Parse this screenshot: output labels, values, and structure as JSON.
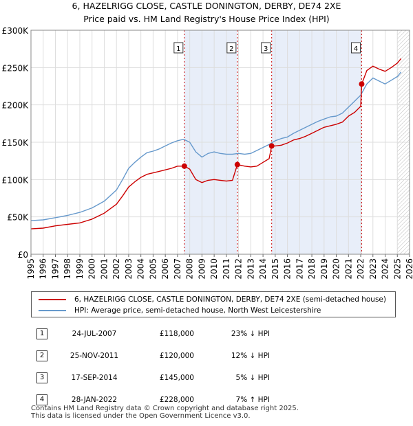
{
  "chart_data": {
    "type": "line",
    "title": "6, HAZELRIGG CLOSE, CASTLE DONINGTON, DERBY, DE74 2XE",
    "subtitle": "Price paid vs. HM Land Registry's House Price Index (HPI)",
    "xlabel": "",
    "ylabel": "",
    "xlim": [
      1995,
      2026
    ],
    "ylim": [
      0,
      300000
    ],
    "y_ticks": [
      0,
      50000,
      100000,
      150000,
      200000,
      250000,
      300000
    ],
    "y_tick_labels": [
      "£0",
      "£50K",
      "£100K",
      "£150K",
      "£200K",
      "£250K",
      "£300K"
    ],
    "x_ticks": [
      1995,
      1996,
      1997,
      1998,
      1999,
      2000,
      2001,
      2002,
      2003,
      2004,
      2005,
      2006,
      2007,
      2008,
      2009,
      2010,
      2011,
      2012,
      2013,
      2014,
      2015,
      2016,
      2017,
      2018,
      2019,
      2020,
      2021,
      2022,
      2023,
      2024,
      2025,
      2026
    ],
    "x_tick_labels": [
      "1995",
      "1996",
      "1997",
      "1998",
      "1999",
      "2000",
      "2001",
      "2002",
      "2003",
      "2004",
      "2005",
      "2006",
      "2007",
      "2008",
      "2009",
      "2010",
      "2011",
      "2012",
      "2013",
      "2014",
      "2015",
      "2016",
      "2017",
      "2018",
      "2019",
      "2020",
      "2021",
      "2022",
      "2023",
      "2024",
      "2025",
      "2026"
    ],
    "grid": true,
    "shaded_ranges": [
      [
        2007.56,
        2011.9
      ],
      [
        2014.71,
        2022.08
      ]
    ],
    "hatched_from": 2025.0,
    "series": [
      {
        "name": "6, HAZELRIGG CLOSE, CASTLE DONINGTON, DERBY, DE74 2XE (semi-detached house)",
        "color": "#cc0000",
        "x": [
          1995.0,
          1996.0,
          1997.0,
          1998.0,
          1999.0,
          2000.0,
          2001.0,
          2002.0,
          2002.5,
          2003.0,
          2003.5,
          2004.0,
          2004.5,
          2005.0,
          2005.5,
          2006.0,
          2006.5,
          2007.0,
          2007.56,
          2008.0,
          2008.5,
          2009.0,
          2009.5,
          2010.0,
          2010.5,
          2011.0,
          2011.5,
          2011.9,
          2012.5,
          2013.0,
          2013.5,
          2014.0,
          2014.5,
          2014.71,
          2015.0,
          2015.5,
          2016.0,
          2016.5,
          2017.0,
          2017.5,
          2018.0,
          2018.5,
          2019.0,
          2019.5,
          2020.0,
          2020.5,
          2021.0,
          2021.5,
          2022.0,
          2022.08,
          2022.5,
          2023.0,
          2023.5,
          2024.0,
          2024.5,
          2025.0,
          2025.3
        ],
        "values": [
          34000,
          35000,
          38000,
          40000,
          42000,
          47000,
          55000,
          67000,
          78000,
          90000,
          97000,
          103000,
          107000,
          109000,
          111000,
          113000,
          115000,
          118000,
          118000,
          114000,
          100000,
          96000,
          99000,
          100000,
          99000,
          98000,
          99000,
          120000,
          118000,
          117000,
          118000,
          123000,
          128000,
          145000,
          145000,
          146000,
          149000,
          153000,
          155000,
          158000,
          162000,
          166000,
          170000,
          172000,
          174000,
          177000,
          185000,
          190000,
          198000,
          228000,
          246000,
          252000,
          248000,
          245000,
          250000,
          256000,
          262000
        ]
      },
      {
        "name": "HPI: Average price, semi-detached house, North West Leicestershire",
        "color": "#6699cc",
        "x": [
          1995.0,
          1996.0,
          1997.0,
          1998.0,
          1999.0,
          2000.0,
          2001.0,
          2002.0,
          2002.5,
          2003.0,
          2003.5,
          2004.0,
          2004.5,
          2005.0,
          2005.5,
          2006.0,
          2006.5,
          2007.0,
          2007.5,
          2008.0,
          2008.5,
          2009.0,
          2009.5,
          2010.0,
          2010.5,
          2011.0,
          2011.5,
          2012.0,
          2012.5,
          2013.0,
          2013.5,
          2014.0,
          2014.5,
          2015.0,
          2015.5,
          2016.0,
          2016.5,
          2017.0,
          2017.5,
          2018.0,
          2018.5,
          2019.0,
          2019.5,
          2020.0,
          2020.5,
          2021.0,
          2021.5,
          2022.0,
          2022.5,
          2023.0,
          2023.5,
          2024.0,
          2024.5,
          2025.0,
          2025.3
        ],
        "values": [
          45000,
          46000,
          49000,
          52000,
          56000,
          62000,
          71000,
          86000,
          100000,
          115000,
          123000,
          130000,
          136000,
          138000,
          141000,
          145000,
          149000,
          152000,
          154000,
          150000,
          137000,
          130000,
          135000,
          137000,
          135000,
          134000,
          134000,
          135000,
          134000,
          135000,
          139000,
          143000,
          147000,
          152000,
          155000,
          157000,
          162000,
          166000,
          170000,
          174000,
          178000,
          181000,
          184000,
          185000,
          189000,
          197000,
          205000,
          213000,
          228000,
          236000,
          232000,
          228000,
          233000,
          238000,
          244000
        ]
      }
    ],
    "sale_points": [
      {
        "label": "1",
        "x": 2007.56,
        "value": 118000
      },
      {
        "label": "2",
        "x": 2011.9,
        "value": 120000
      },
      {
        "label": "3",
        "x": 2014.71,
        "value": 145000
      },
      {
        "label": "4",
        "x": 2022.08,
        "value": 228000
      }
    ]
  },
  "legend": {
    "red_label": "6, HAZELRIGG CLOSE, CASTLE DONINGTON, DERBY, DE74 2XE (semi-detached house)",
    "blue_label": "HPI: Average price, semi-detached house, North West Leicestershire",
    "red_color": "#cc0000",
    "blue_color": "#6699cc"
  },
  "sales": [
    {
      "num": "1",
      "date": "24-JUL-2007",
      "price": "£118,000",
      "hpi": "23% ↓ HPI"
    },
    {
      "num": "2",
      "date": "25-NOV-2011",
      "price": "£120,000",
      "hpi": "12% ↓ HPI"
    },
    {
      "num": "3",
      "date": "17-SEP-2014",
      "price": "£145,000",
      "hpi": "5% ↓ HPI"
    },
    {
      "num": "4",
      "date": "28-JAN-2022",
      "price": "£228,000",
      "hpi": "7% ↑ HPI"
    }
  ],
  "footer": {
    "line1": "Contains HM Land Registry data © Crown copyright and database right 2025.",
    "line2": "This data is licensed under the Open Government Licence v3.0."
  }
}
